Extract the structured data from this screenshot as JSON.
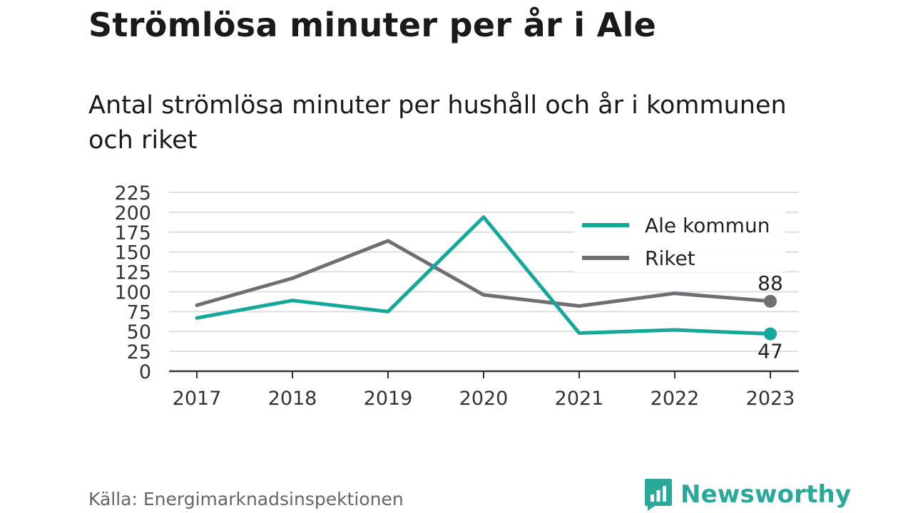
{
  "title": "Strömlösa minuter per år i Ale",
  "subtitle": "Antal strömlösa minuter per hushåll och år i kommunen och riket",
  "source": "Källa: Energimarknadsinspektionen",
  "brand": {
    "name": "Newsworthy",
    "icon": "newsworthy-logo-icon",
    "color": "#2aa89a"
  },
  "chart_data": {
    "type": "line",
    "title": "Strömlösa minuter per år i Ale",
    "x": [
      "2017",
      "2018",
      "2019",
      "2020",
      "2021",
      "2022",
      "2023"
    ],
    "series": [
      {
        "name": "Ale kommun",
        "color": "#14a89a",
        "values": [
          67,
          89,
          75,
          194,
          48,
          52,
          47
        ]
      },
      {
        "name": "Riket",
        "color": "#6e6e73",
        "values": [
          83,
          117,
          164,
          96,
          82,
          98,
          88
        ]
      }
    ],
    "end_labels": [
      {
        "series": "Riket",
        "text": "88"
      },
      {
        "series": "Ale kommun",
        "text": "47"
      }
    ],
    "yticks": [
      0,
      25,
      50,
      75,
      100,
      125,
      150,
      175,
      200,
      225
    ],
    "ylim": [
      0,
      225
    ],
    "grid": true,
    "legend": "top-right",
    "xlabel": "",
    "ylabel": ""
  }
}
